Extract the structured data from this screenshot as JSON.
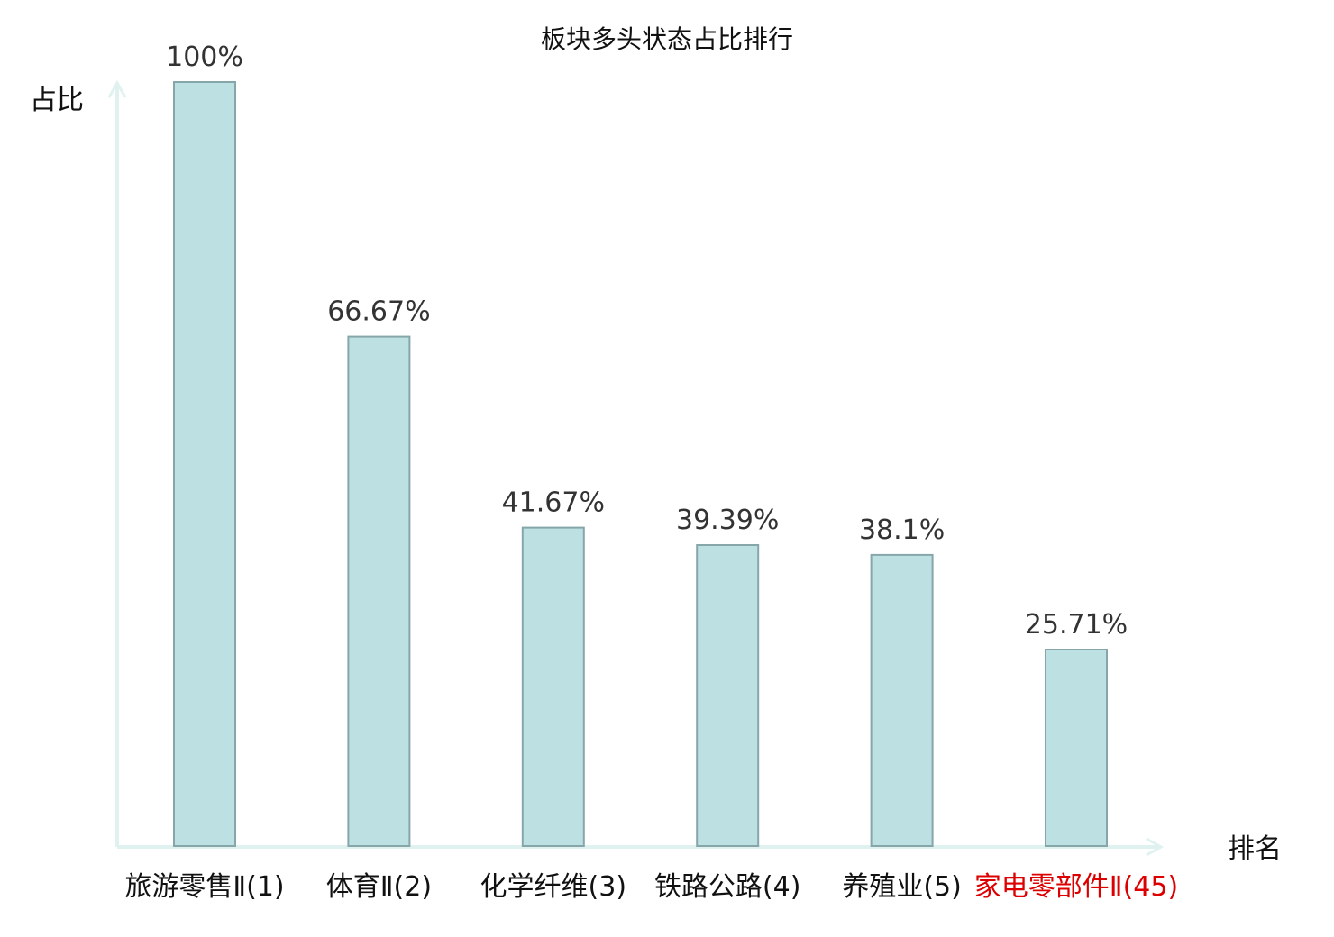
{
  "chart_data": {
    "type": "bar",
    "title": "板块多头状态占比排行",
    "xlabel": "排名",
    "ylabel": "占比",
    "categories": [
      "旅游零售Ⅱ(1)",
      "体育Ⅱ(2)",
      "化学纤维(3)",
      "铁路公路(4)",
      "养殖业(5)",
      "家电零部件Ⅱ(45)"
    ],
    "values": [
      100,
      66.67,
      41.67,
      39.39,
      38.1,
      25.71
    ],
    "value_labels": [
      "100%",
      "66.67%",
      "41.67%",
      "39.39%",
      "38.1%",
      "25.71%"
    ],
    "category_colors": [
      "#111111",
      "#111111",
      "#111111",
      "#111111",
      "#111111",
      "#dd0000"
    ],
    "ylim": [
      0,
      100
    ],
    "grid": false,
    "legend": "none"
  },
  "colors": {
    "bar_fill": "#bde0e3",
    "bar_stroke": "#86a6aa",
    "axis": "#dff2ef",
    "highlight": "#dd0000"
  }
}
